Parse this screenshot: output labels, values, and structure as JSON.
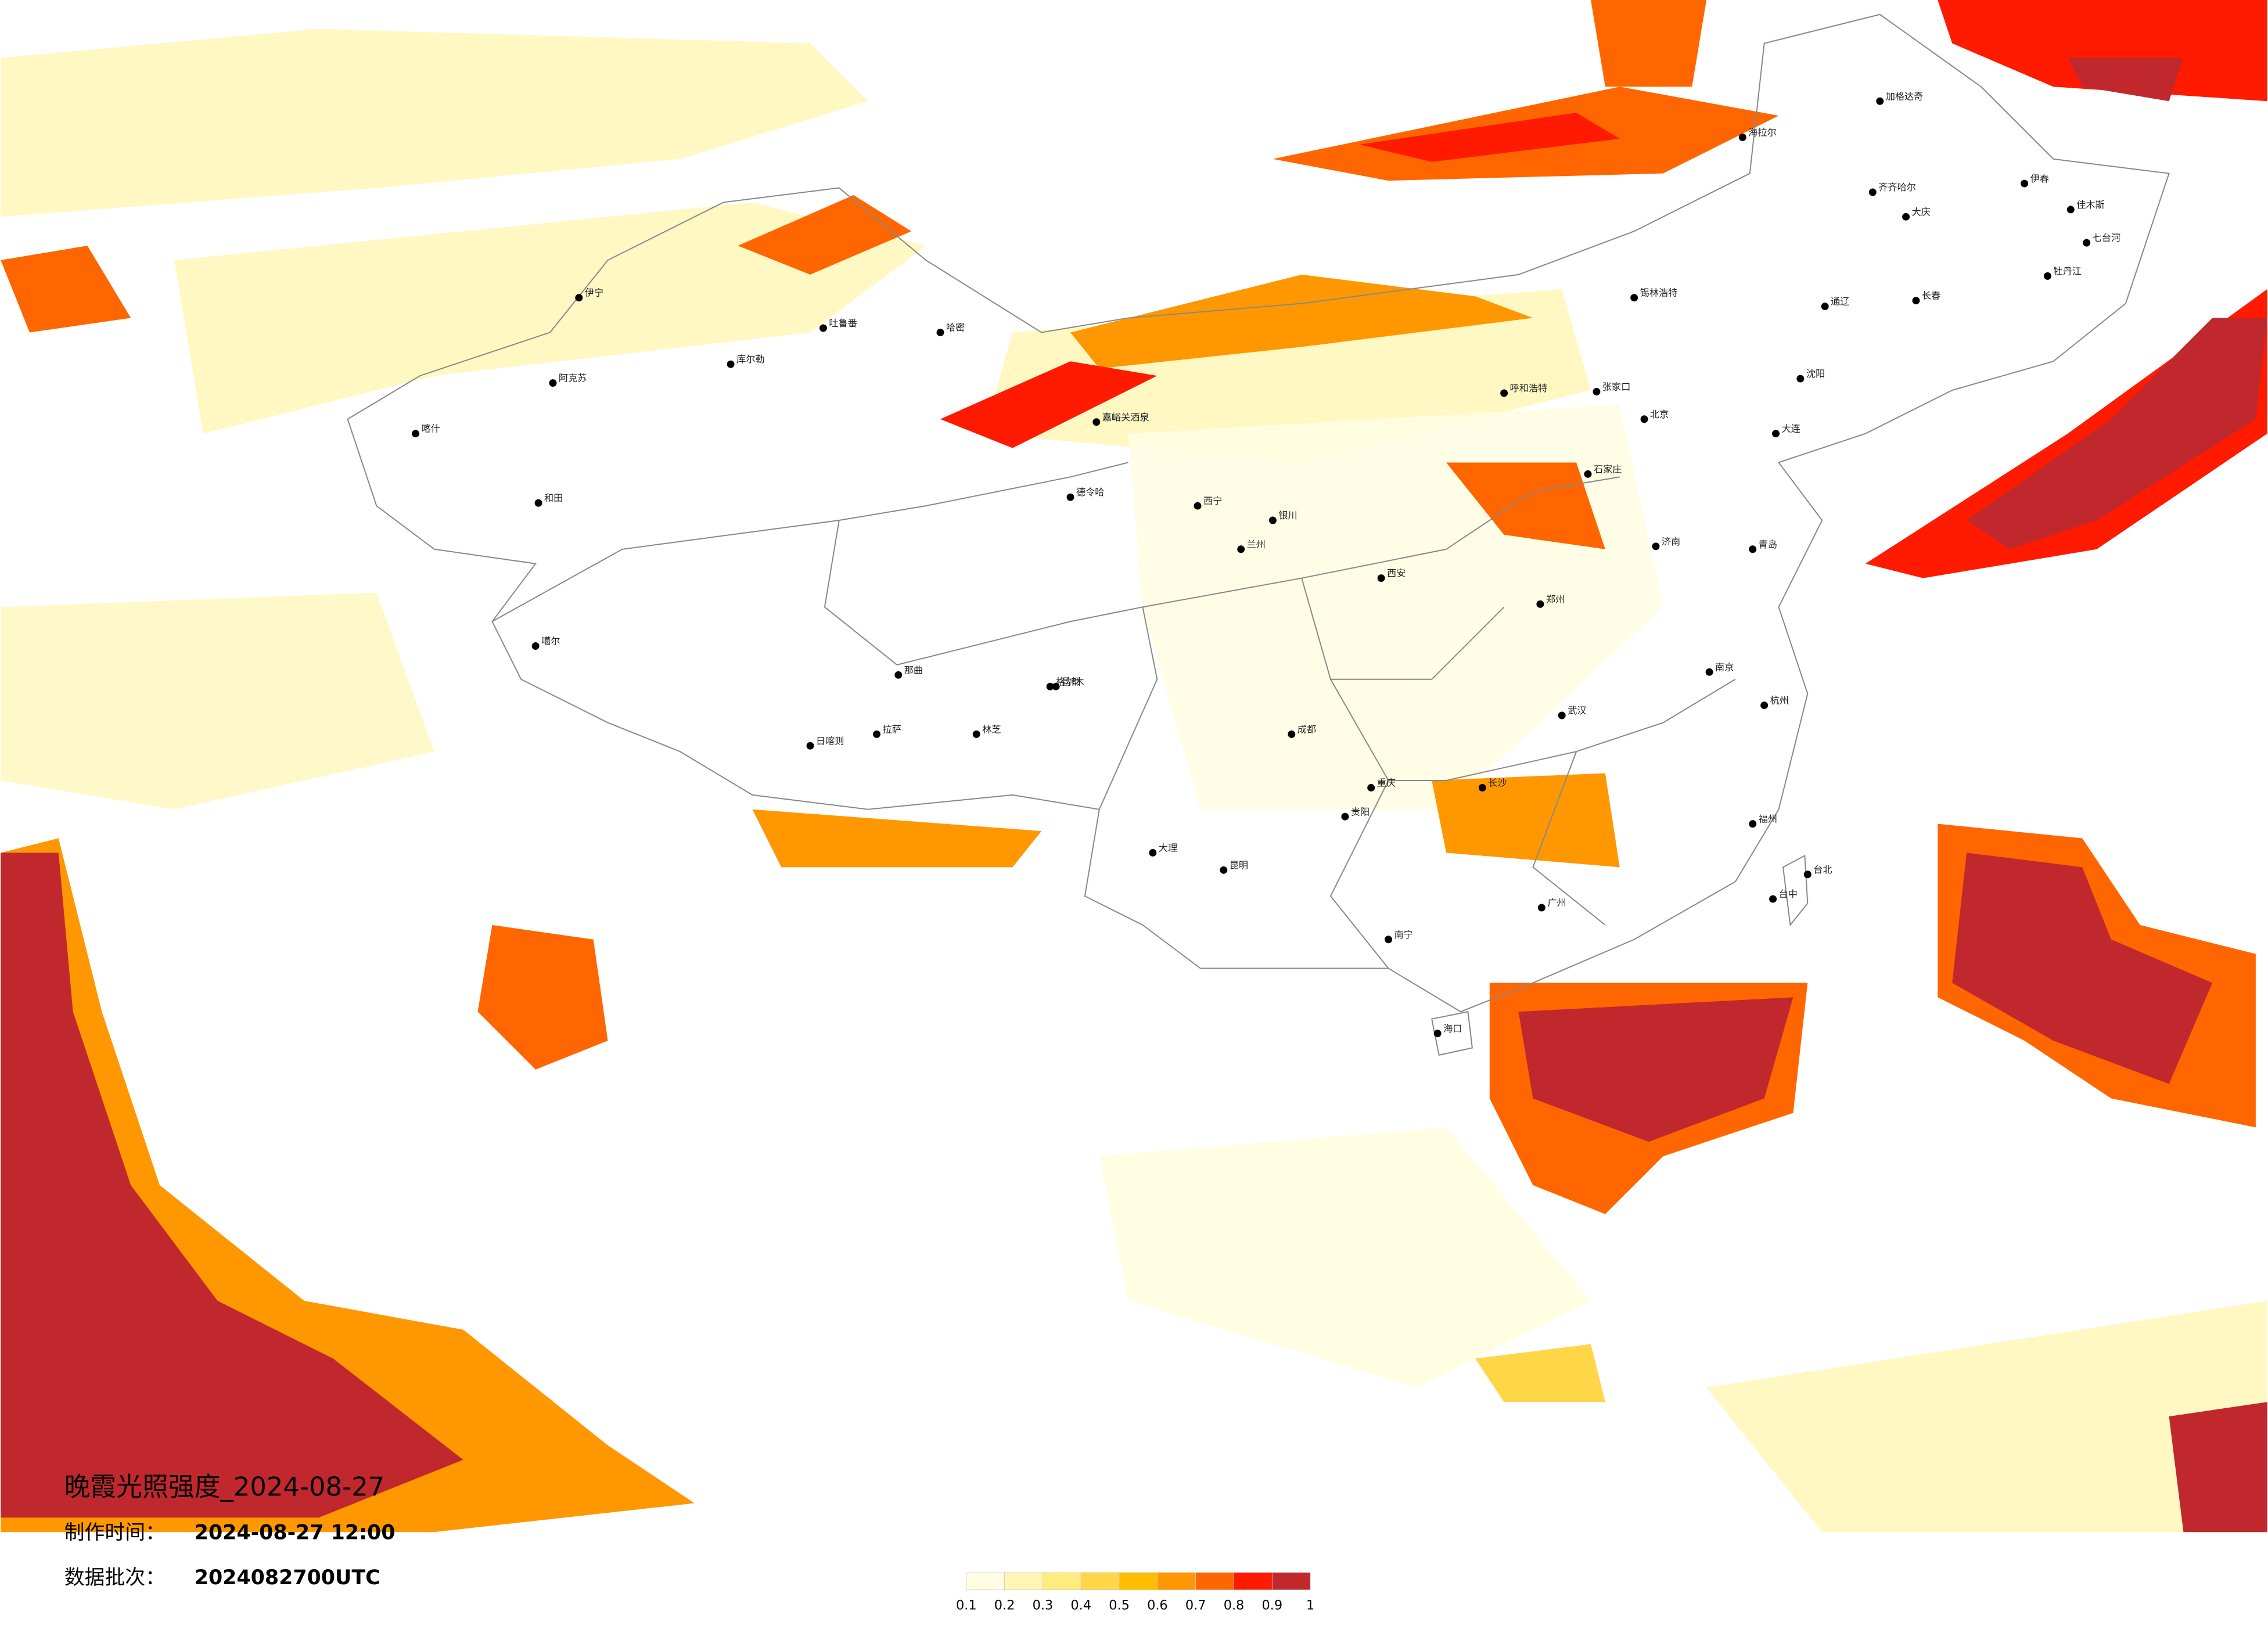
{
  "title": "晚霞光照强度_2024-08-27",
  "info": [
    {
      "label": "制作时间：",
      "value": "2024-08-27 12:00"
    },
    {
      "label": "数据批次：",
      "value": "2024082700UTC"
    }
  ],
  "legend": {
    "ticks": [
      0.1,
      0.2,
      0.3,
      0.4,
      0.5,
      0.6,
      0.7,
      0.8,
      0.9,
      1
    ],
    "colors": [
      "#fffde2",
      "#fff6b4",
      "#ffec7e",
      "#ffd648",
      "#ffbf00",
      "#ff9800",
      "#ff6600",
      "#ff1a00",
      "#c0282e"
    ]
  },
  "cities": [
    "加格达奇",
    "海拉尔",
    "齐齐哈尔",
    "大庆",
    "伊春",
    "佳木斯",
    "七台河",
    "牡丹江",
    "长春",
    "通辽",
    "锡林浩特",
    "呼和浩特",
    "张家口",
    "沈阳",
    "大连",
    "北京",
    "石家庄",
    "济南",
    "青岛",
    "郑州",
    "西安",
    "南京",
    "杭州",
    "武汉",
    "长沙",
    "福州",
    "台北",
    "台中",
    "广州",
    "南宁",
    "海口",
    "贵阳",
    "昆明",
    "大理",
    "成都",
    "重庆",
    "兰州",
    "西宁",
    "银川",
    "嘉峪关酒泉",
    "德令哈",
    "格尔木",
    "哈密",
    "吐鲁番",
    "库尔勒",
    "阿克苏",
    "喀什",
    "和田",
    "伊宁",
    "噶尔",
    "日喀则",
    "拉萨",
    "那曲",
    "林芝",
    "昌都"
  ]
}
